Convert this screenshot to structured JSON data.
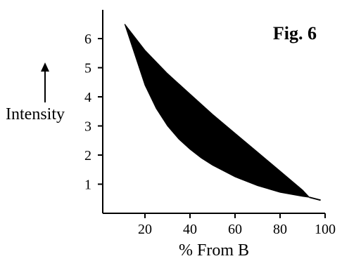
{
  "chart_data": {
    "type": "area",
    "title": "Fig. 6",
    "xlabel": "% From B",
    "ylabel": "Intensity",
    "xlim": [
      0,
      100
    ],
    "ylim": [
      0,
      7
    ],
    "x_ticks": [
      20,
      40,
      60,
      80,
      100
    ],
    "y_ticks": [
      1,
      2,
      3,
      4,
      5,
      6
    ],
    "grid": false,
    "legend": "none",
    "fill_color": "#000000",
    "series": [
      {
        "role": "upper",
        "x": [
          11,
          20,
          30,
          40,
          50,
          60,
          70,
          80,
          90,
          93
        ],
        "y": [
          6.5,
          5.6,
          4.8,
          4.1,
          3.4,
          2.75,
          2.1,
          1.45,
          0.8,
          0.55
        ]
      },
      {
        "role": "lower",
        "x": [
          11,
          20,
          25,
          30,
          35,
          40,
          45,
          50,
          60,
          70,
          80,
          90,
          93
        ],
        "y": [
          6.5,
          4.4,
          3.6,
          3.0,
          2.55,
          2.2,
          1.9,
          1.65,
          1.25,
          0.95,
          0.72,
          0.58,
          0.55
        ]
      },
      {
        "role": "tail",
        "x": [
          93,
          98
        ],
        "y": [
          0.55,
          0.45
        ]
      }
    ]
  }
}
